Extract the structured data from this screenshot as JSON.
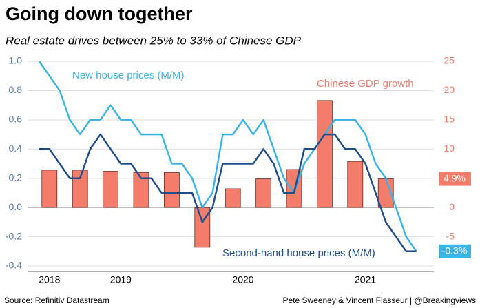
{
  "chart_data": {
    "type": "combo",
    "title": "Going down together",
    "subtitle": "Real estate drives between 25% to 33% of Chinese GDP",
    "source": "Source: Refinitiv Datastream",
    "credit": "Pete Sweeney & Vincent Flasseur | @Breakingviews",
    "categories": [
      null,
      "2018",
      null,
      null,
      null,
      null,
      null,
      null,
      "2019",
      null,
      null,
      null,
      null,
      null,
      null,
      null,
      null,
      null,
      null,
      null,
      "2020",
      null,
      null,
      null,
      null,
      null,
      null,
      null,
      null,
      null,
      null,
      null,
      "2021",
      null,
      null,
      null,
      null,
      null
    ],
    "ylim": [
      -0.4,
      1
    ],
    "yticks": [
      {
        "value": 1,
        "label": "1.0"
      },
      0.8,
      0.6,
      0.4,
      0.2,
      {
        "value": 0,
        "label": "0.0"
      },
      -0.2,
      -0.4
    ],
    "y2lim": [
      -10,
      25
    ],
    "y2ticks": [
      25,
      20,
      15,
      10,
      5,
      0,
      -5
    ],
    "grid": true,
    "series": [
      {
        "name": "Chinese GDP growth",
        "type": "bar",
        "axis": "y2",
        "color": "#f47c6a",
        "values": [
          null,
          6.4,
          null,
          null,
          6.4,
          null,
          null,
          6.2,
          null,
          null,
          6.0,
          null,
          null,
          6.0,
          null,
          null,
          -6.8,
          null,
          null,
          3.2,
          null,
          null,
          4.9,
          null,
          null,
          6.5,
          null,
          null,
          18.3,
          null,
          null,
          7.9,
          null,
          null,
          4.9,
          null,
          null,
          null
        ],
        "value_labels": [
          null,
          null,
          null,
          null,
          null,
          null,
          null,
          null,
          null,
          null,
          null,
          null,
          null,
          null,
          null,
          null,
          null,
          null,
          null,
          null,
          null,
          null,
          null,
          null,
          null,
          null,
          null,
          null,
          null,
          null,
          null,
          null,
          null,
          null,
          "4.9%",
          null,
          null,
          null
        ]
      },
      {
        "name": "New house prices (M/M)",
        "type": "line",
        "color": "#3cb4e5",
        "values": [
          1.0,
          0.9,
          0.8,
          0.6,
          0.5,
          0.6,
          0.6,
          0.7,
          0.6,
          0.6,
          0.5,
          0.5,
          0.5,
          0.3,
          0.3,
          0.2,
          0.0,
          0.1,
          0.5,
          0.5,
          0.6,
          0.5,
          0.6,
          0.4,
          0.2,
          0.1,
          0.3,
          0.4,
          0.5,
          0.6,
          0.6,
          0.6,
          0.5,
          0.3,
          0.2,
          0.0,
          -0.2,
          -0.3
        ],
        "value_labels": [
          null,
          null,
          null,
          null,
          null,
          null,
          null,
          null,
          null,
          null,
          null,
          null,
          null,
          null,
          null,
          null,
          null,
          null,
          null,
          null,
          null,
          null,
          null,
          null,
          null,
          null,
          null,
          null,
          null,
          null,
          null,
          null,
          null,
          null,
          null,
          null,
          null,
          "-0.3%"
        ]
      },
      {
        "name": "Second-hand house prices (M/M)",
        "type": "line",
        "color": "#1f4e8c",
        "values": [
          0.4,
          0.4,
          0.3,
          0.2,
          0.2,
          0.4,
          0.5,
          0.4,
          0.3,
          0.3,
          0.2,
          0.2,
          0.1,
          0.1,
          0.1,
          0.1,
          -0.1,
          0.0,
          0.3,
          0.3,
          0.3,
          0.3,
          0.4,
          0.3,
          0.1,
          0.1,
          0.4,
          0.4,
          0.5,
          0.5,
          0.4,
          0.4,
          0.3,
          0.1,
          -0.1,
          -0.2,
          -0.3,
          -0.3
        ]
      }
    ]
  }
}
